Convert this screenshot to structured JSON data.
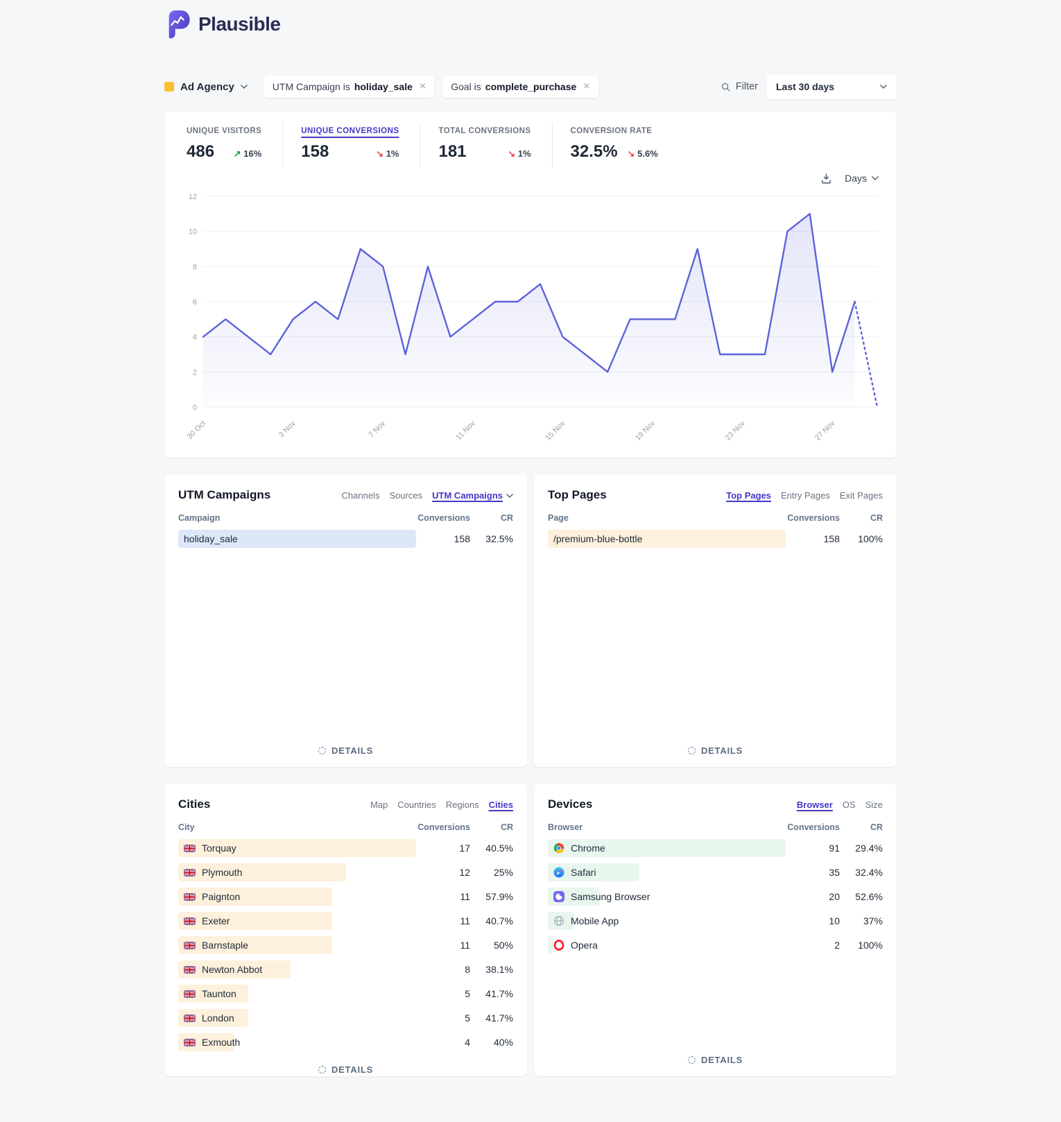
{
  "header": {
    "brand": "Plausible"
  },
  "filter_bar": {
    "site_name": "Ad Agency",
    "site_color": "#fbc02d",
    "filters": [
      {
        "prefix": "UTM Campaign is",
        "value": "holiday_sale",
        "remove_label": "×"
      },
      {
        "prefix": "Goal is",
        "value": "complete_purchase",
        "remove_label": "×"
      }
    ],
    "filter_label": "Filter",
    "date_range": "Last 30 days"
  },
  "stats": [
    {
      "label": "UNIQUE VISITORS",
      "value": "486",
      "change": "16%",
      "direction": "up",
      "active": false
    },
    {
      "label": "UNIQUE CONVERSIONS",
      "value": "158",
      "change": "1%",
      "direction": "down",
      "active": true
    },
    {
      "label": "TOTAL CONVERSIONS",
      "value": "181",
      "change": "1%",
      "direction": "down",
      "active": false
    },
    {
      "label": "CONVERSION RATE",
      "value": "32.5%",
      "change": "5.6%",
      "direction": "down",
      "active": false
    }
  ],
  "chart_controls": {
    "interval": "Days"
  },
  "chart_data": {
    "type": "line",
    "metric": "Unique conversions",
    "x": [
      "30 Oct",
      "31 Oct",
      "1 Nov",
      "2 Nov",
      "3 Nov",
      "4 Nov",
      "5 Nov",
      "6 Nov",
      "7 Nov",
      "8 Nov",
      "9 Nov",
      "10 Nov",
      "11 Nov",
      "12 Nov",
      "13 Nov",
      "14 Nov",
      "15 Nov",
      "16 Nov",
      "17 Nov",
      "18 Nov",
      "19 Nov",
      "20 Nov",
      "21 Nov",
      "22 Nov",
      "23 Nov",
      "24 Nov",
      "25 Nov",
      "26 Nov",
      "27 Nov",
      "28 Nov",
      "29 Nov"
    ],
    "values": [
      4,
      5,
      4,
      3,
      5,
      6,
      5,
      9,
      8,
      3,
      8,
      4,
      5,
      6,
      6,
      7,
      4,
      3,
      2,
      5,
      5,
      5,
      9,
      3,
      3,
      3,
      10,
      11,
      2,
      6,
      0
    ],
    "x_tick_step": 4,
    "x_tick_labels": [
      "30 Oct",
      "3 Nov",
      "7 Nov",
      "11 Nov",
      "15 Nov",
      "19 Nov",
      "23 Nov",
      "27 Nov"
    ],
    "y_ticks": [
      0,
      2,
      4,
      6,
      8,
      10,
      12
    ],
    "ylim": [
      0,
      12
    ],
    "grid": true,
    "legend": "none",
    "line_color": "#5b63d8",
    "dotted_last_segment": true
  },
  "panels": [
    {
      "id": "utm-campaigns",
      "title": "UTM Campaigns",
      "tabs": [
        "Channels",
        "Sources",
        "UTM Campaigns"
      ],
      "active_tab": "UTM Campaigns",
      "active_tab_chevron": true,
      "columns": [
        "Campaign",
        "Conversions",
        "CR"
      ],
      "bar_color": "#dce7f8",
      "rows": [
        {
          "name": "holiday_sale",
          "conversions": "158",
          "cr": "32.5%"
        }
      ],
      "details_label": "DETAILS"
    },
    {
      "id": "top-pages",
      "title": "Top Pages",
      "tabs": [
        "Top Pages",
        "Entry Pages",
        "Exit Pages"
      ],
      "active_tab": "Top Pages",
      "active_tab_chevron": false,
      "columns": [
        "Page",
        "Conversions",
        "CR"
      ],
      "bar_color": "#fdf1dd",
      "rows": [
        {
          "name": "/premium-blue-bottle",
          "conversions": "158",
          "cr": "100%"
        }
      ],
      "details_label": "DETAILS"
    },
    {
      "id": "cities",
      "title": "Cities",
      "tabs": [
        "Map",
        "Countries",
        "Regions",
        "Cities"
      ],
      "active_tab": "Cities",
      "active_tab_chevron": false,
      "columns": [
        "City",
        "Conversions",
        "CR"
      ],
      "bar_color": "#fdf1dd",
      "rows": [
        {
          "icon": "uk-flag",
          "name": "Torquay",
          "conversions": "17",
          "cr": "40.5%"
        },
        {
          "icon": "uk-flag",
          "name": "Plymouth",
          "conversions": "12",
          "cr": "25%"
        },
        {
          "icon": "uk-flag",
          "name": "Paignton",
          "conversions": "11",
          "cr": "57.9%"
        },
        {
          "icon": "uk-flag",
          "name": "Exeter",
          "conversions": "11",
          "cr": "40.7%"
        },
        {
          "icon": "uk-flag",
          "name": "Barnstaple",
          "conversions": "11",
          "cr": "50%"
        },
        {
          "icon": "uk-flag",
          "name": "Newton Abbot",
          "conversions": "8",
          "cr": "38.1%"
        },
        {
          "icon": "uk-flag",
          "name": "Taunton",
          "conversions": "5",
          "cr": "41.7%"
        },
        {
          "icon": "uk-flag",
          "name": "London",
          "conversions": "5",
          "cr": "41.7%"
        },
        {
          "icon": "uk-flag",
          "name": "Exmouth",
          "conversions": "4",
          "cr": "40%"
        }
      ],
      "details_label": "DETAILS"
    },
    {
      "id": "devices",
      "title": "Devices",
      "tabs": [
        "Browser",
        "OS",
        "Size"
      ],
      "active_tab": "Browser",
      "active_tab_chevron": false,
      "columns": [
        "Browser",
        "Conversions",
        "CR"
      ],
      "bar_color": "#e9f6ee",
      "rows": [
        {
          "icon": "chrome",
          "name": "Chrome",
          "conversions": "91",
          "cr": "29.4%"
        },
        {
          "icon": "safari",
          "name": "Safari",
          "conversions": "35",
          "cr": "32.4%"
        },
        {
          "icon": "samsung",
          "name": "Samsung Browser",
          "conversions": "20",
          "cr": "52.6%"
        },
        {
          "icon": "globe",
          "name": "Mobile App",
          "conversions": "10",
          "cr": "37%"
        },
        {
          "icon": "opera",
          "name": "Opera",
          "conversions": "2",
          "cr": "100%"
        }
      ],
      "details_label": "DETAILS"
    }
  ]
}
